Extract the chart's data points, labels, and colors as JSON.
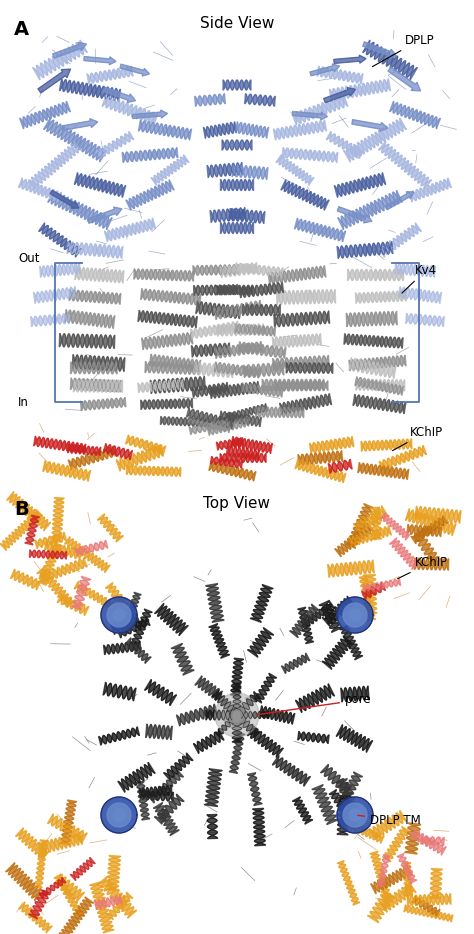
{
  "fig_width": 4.74,
  "fig_height": 9.34,
  "dpi": 100,
  "bg_color": "#ffffff",
  "panel_A": {
    "label": "A",
    "title": "Side View",
    "dplp_color_light": "#a8b8e0",
    "dplp_color_mid": "#7890c8",
    "dplp_color_dark": "#4a60a0",
    "kv4_color_light": "#c0c0c0",
    "kv4_color_mid": "#909090",
    "kv4_color_dark": "#505050",
    "kchip_color": "#e8a020",
    "kchip_color_dark": "#c07010",
    "red_accent": "#cc2020",
    "bracket_color": "#5575b5",
    "annot_line_color": "#000000"
  },
  "panel_B": {
    "label": "B",
    "title": "Top View",
    "kv4_dark": "#1a1a1a",
    "kv4_mid": "#383838",
    "kchip_color": "#e8a020",
    "kchip_dark": "#c07010",
    "red_accent": "#cc2020",
    "pink_accent": "#e87878",
    "blue_dplp": "#3050a8",
    "blue_dplp_light": "#6888cc"
  }
}
